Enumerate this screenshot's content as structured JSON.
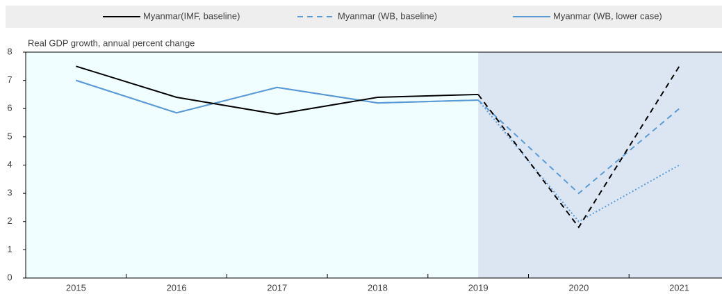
{
  "chart_data": {
    "type": "line",
    "subtitle": "Real GDP growth, annual percent change",
    "categories": [
      "2015",
      "2016",
      "2017",
      "2018",
      "2019",
      "2020",
      "2021"
    ],
    "projection_from": "2019",
    "series": [
      {
        "name": "Myanmar(IMF, baseline)",
        "color": "#000000",
        "legend_style": "solid",
        "projection_style": "dashed",
        "values": [
          7.5,
          6.4,
          5.8,
          6.4,
          6.5,
          1.8,
          7.5
        ]
      },
      {
        "name": "Myanmar (WB, baseline)",
        "color": "#5b9bd5",
        "legend_style": "dashed",
        "projection_style": "dashed",
        "values": [
          7.0,
          5.85,
          6.75,
          6.2,
          6.3,
          3.0,
          6.0
        ]
      },
      {
        "name": "Myanmar (WB, lower case)",
        "color": "#5b9bd5",
        "legend_style": "solid",
        "projection_style": "dotted",
        "values": [
          7.0,
          5.85,
          6.75,
          6.2,
          6.3,
          2.0,
          4.0
        ]
      }
    ],
    "ylim": [
      0,
      8
    ],
    "yticks": [
      0,
      1,
      2,
      3,
      4,
      5,
      6,
      7,
      8
    ],
    "legend": "top"
  }
}
